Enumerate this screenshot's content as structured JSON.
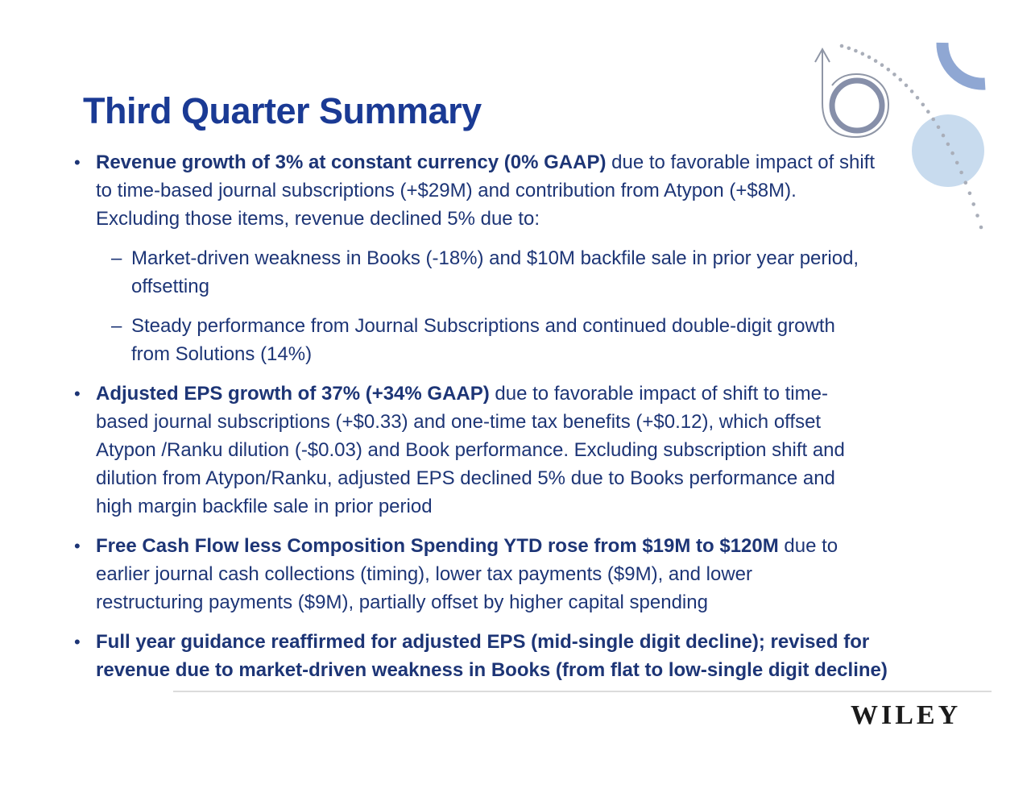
{
  "slide": {
    "title": "Third Quarter Summary",
    "bullets": [
      {
        "level": 1,
        "marker": "•",
        "segments": [
          {
            "bold": true,
            "text": "Revenue growth of 3% at constant currency (0% GAAP)"
          },
          {
            "bold": false,
            "text": " due to favorable impact of shift\nto time-based journal subscriptions (+$29M) and contribution from Atypon (+$8M).\nExcluding those items, revenue declined 5% due to:"
          }
        ]
      },
      {
        "level": 2,
        "marker": "–",
        "segments": [
          {
            "bold": false,
            "text": "Market-driven weakness in Books (-18%) and $10M backfile sale in prior year period,\noffsetting"
          }
        ]
      },
      {
        "level": 2,
        "marker": "–",
        "segments": [
          {
            "bold": false,
            "text": "Steady performance from Journal Subscriptions and continued double-digit growth\nfrom Solutions (14%)"
          }
        ]
      },
      {
        "level": 1,
        "marker": "•",
        "segments": [
          {
            "bold": true,
            "text": "Adjusted EPS growth of 37% (+34% GAAP)"
          },
          {
            "bold": false,
            "text": " due to favorable impact of shift to time-\nbased journal subscriptions (+$0.33) and one-time tax benefits (+$0.12), which offset\nAtypon /Ranku dilution (-$0.03) and Book performance.  Excluding subscription shift and\ndilution from Atypon/Ranku, adjusted EPS declined 5% due to Books performance and\nhigh margin backfile sale in prior period"
          }
        ]
      },
      {
        "level": 1,
        "marker": "•",
        "segments": [
          {
            "bold": true,
            "text": "Free Cash Flow less Composition Spending YTD rose from $19M to $120M"
          },
          {
            "bold": false,
            "text": " due to\nearlier journal cash collections (timing), lower tax payments ($9M), and lower\nrestructuring payments ($9M), partially offset by higher capital spending"
          }
        ]
      },
      {
        "level": 1,
        "marker": "•",
        "segments": [
          {
            "bold": true,
            "text": "Full year guidance reaffirmed for adjusted EPS (mid-single digit decline); revised for\nrevenue due to market-driven weakness in Books (from flat to low-single digit decline)"
          }
        ]
      }
    ],
    "logo_text": "WILEY"
  },
  "colors": {
    "title": "#1a3a94",
    "body_text": "#1d3576",
    "logo": "#1b1b1b",
    "accent_arc": "#8fa7d3",
    "accent_circle": "#c8dbee",
    "dots": "#a9aeb9",
    "spiral": "#868fa9",
    "divider": "#dcdcdc"
  },
  "decor_icons": [
    "up-arrow-spiral-icon",
    "dotted-curve-icon",
    "circle-accent-icon",
    "arc-accent-icon"
  ]
}
